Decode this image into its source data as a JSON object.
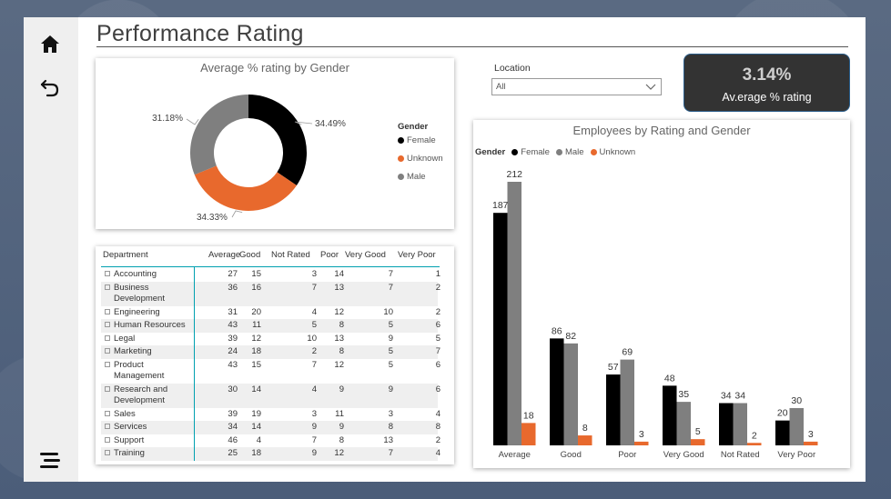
{
  "nav": {
    "home_icon": "home-icon",
    "back_icon": "back-arrow-icon",
    "menu_icon": "menu-icon"
  },
  "page": {
    "title": "Performance Rating"
  },
  "donut": {
    "title": "Average % rating by Gender",
    "legend_title": "Gender",
    "slices": [
      {
        "name": "Female",
        "value": 34.49,
        "label": "34.49%",
        "color": "#000000"
      },
      {
        "name": "Unknown",
        "value": 34.33,
        "label": "34.33%",
        "color": "#e8692d"
      },
      {
        "name": "Male",
        "value": 31.18,
        "label": "31.18%",
        "color": "#7f7f7f"
      }
    ]
  },
  "slicer": {
    "label": "Location",
    "value": "All"
  },
  "kpi": {
    "value": "3.14%",
    "label": "Av.erage % rating"
  },
  "matrix": {
    "headers": [
      "Department",
      "Average",
      "Good",
      "Not Rated",
      "Poor",
      "Very Good",
      "Very Poor"
    ],
    "rows": [
      {
        "dept": "Accounting",
        "vals": [
          "27",
          "15",
          "3",
          "14",
          "7",
          "1"
        ]
      },
      {
        "dept": "Business Development",
        "vals": [
          "36",
          "16",
          "7",
          "13",
          "7",
          "2"
        ]
      },
      {
        "dept": "Engineering",
        "vals": [
          "31",
          "20",
          "4",
          "12",
          "10",
          "2"
        ]
      },
      {
        "dept": "Human Resources",
        "vals": [
          "43",
          "11",
          "5",
          "8",
          "5",
          "6"
        ]
      },
      {
        "dept": "Legal",
        "vals": [
          "39",
          "12",
          "10",
          "13",
          "9",
          "5"
        ]
      },
      {
        "dept": "Marketing",
        "vals": [
          "24",
          "18",
          "2",
          "8",
          "5",
          "7"
        ]
      },
      {
        "dept": "Product Management",
        "vals": [
          "43",
          "15",
          "7",
          "12",
          "5",
          "6"
        ]
      },
      {
        "dept": "Research and Development",
        "vals": [
          "30",
          "14",
          "4",
          "9",
          "9",
          "6"
        ]
      },
      {
        "dept": "Sales",
        "vals": [
          "39",
          "19",
          "3",
          "11",
          "3",
          "4"
        ]
      },
      {
        "dept": "Services",
        "vals": [
          "34",
          "14",
          "9",
          "9",
          "8",
          "8"
        ]
      },
      {
        "dept": "Support",
        "vals": [
          "46",
          "4",
          "7",
          "8",
          "13",
          "2"
        ]
      },
      {
        "dept": "Training",
        "vals": [
          "25",
          "18",
          "9",
          "12",
          "7",
          "4"
        ]
      }
    ]
  },
  "chart_data": {
    "type": "bar",
    "title": "Employees by Rating and Gender",
    "legend_title": "Gender",
    "legend_position": "top-left",
    "categories": [
      "Average",
      "Good",
      "Poor",
      "Very Good",
      "Not Rated",
      "Very Poor"
    ],
    "series": [
      {
        "name": "Female",
        "color": "#000000",
        "values": [
          187,
          86,
          57,
          48,
          34,
          20
        ]
      },
      {
        "name": "Male",
        "color": "#7f7f7f",
        "values": [
          212,
          82,
          69,
          35,
          34,
          30
        ]
      },
      {
        "name": "Unknown",
        "color": "#e8692d",
        "values": [
          18,
          8,
          3,
          5,
          2,
          3
        ]
      }
    ],
    "grid": false
  }
}
